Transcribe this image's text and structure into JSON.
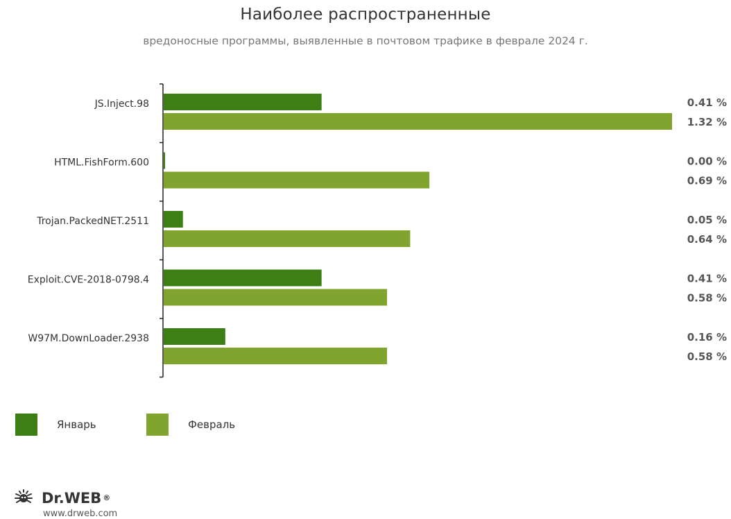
{
  "title": "Наиболее распространенные",
  "subtitle": "вредоносные программы, выявленные в почтовом трафике в феврале 2024 г.",
  "colors": {
    "jan": "#3d7f15",
    "feb": "#80a42e",
    "axis": "#222222",
    "value_text": "#555555"
  },
  "chart_data": {
    "type": "bar",
    "orientation": "horizontal",
    "title": "Наиболее распространенные",
    "subtitle": "вредоносные программы, выявленные в почтовом трафике в феврале 2024 г.",
    "categories": [
      "JS.Inject.98",
      "HTML.FishForm.600",
      "Trojan.PackedNET.2511",
      "Exploit.CVE-2018-0798.4",
      "W97M.DownLoader.2938"
    ],
    "series": [
      {
        "name": "Январь",
        "values": [
          0.41,
          0.0,
          0.05,
          0.41,
          0.16
        ],
        "labels": [
          "0.41 %",
          "0.00 %",
          "0.05 %",
          "0.41 %",
          "0.16 %"
        ]
      },
      {
        "name": "Февраль",
        "values": [
          1.32,
          0.69,
          0.64,
          0.58,
          0.58
        ],
        "labels": [
          "1.32 %",
          "0.69 %",
          "0.64 %",
          "0.58 %",
          "0.58 %"
        ]
      }
    ],
    "xlim": [
      0,
      1.32
    ],
    "grid": false,
    "legend_position": "bottom-left"
  },
  "legend": {
    "jan_label": "Январь",
    "feb_label": "Февраль"
  },
  "logo": {
    "brand": "Dr.WEB",
    "site": "www.drweb.com",
    "icon": "drweb-spider-icon"
  }
}
